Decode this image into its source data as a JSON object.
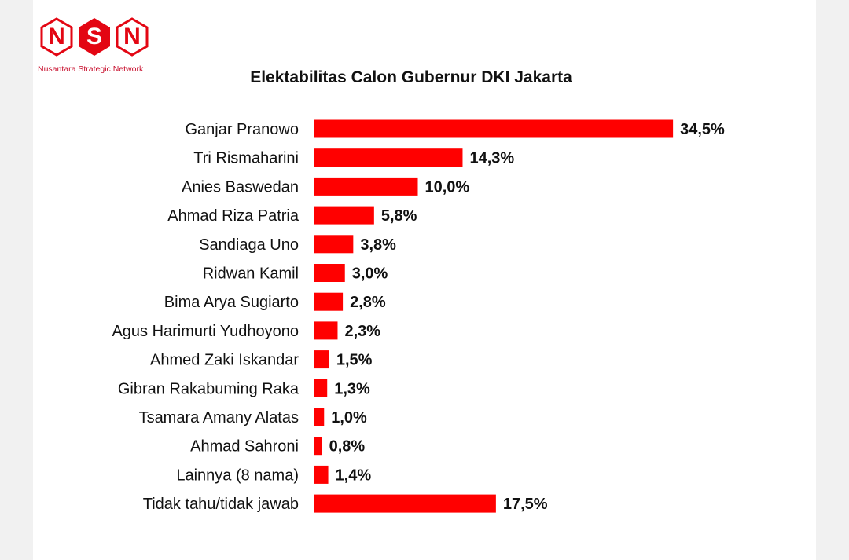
{
  "logo": {
    "letters": [
      "N",
      "S",
      "N"
    ],
    "tagline": "Nusantara Strategic Network",
    "color": "#e30613"
  },
  "chart_data": {
    "type": "bar",
    "orientation": "horizontal",
    "title": "Elektabilitas Calon Gubernur DKI Jakarta",
    "xlabel": "",
    "ylabel": "",
    "categories": [
      "Ganjar Pranowo",
      "Tri Rismaharini",
      "Anies Baswedan",
      "Ahmad Riza Patria",
      "Sandiaga Uno",
      "Ridwan Kamil",
      "Bima Arya Sugiarto",
      "Agus Harimurti Yudhoyono",
      "Ahmed Zaki Iskandar",
      "Gibran Rakabuming Raka",
      "Tsamara Amany Alatas",
      "Ahmad Sahroni",
      "Lainnya (8 nama)",
      "Tidak tahu/tidak jawab"
    ],
    "values": [
      34.5,
      14.3,
      10.0,
      5.8,
      3.8,
      3.0,
      2.8,
      2.3,
      1.5,
      1.3,
      1.0,
      0.8,
      1.4,
      17.5
    ],
    "value_labels": [
      "34,5%",
      "14,3%",
      "10,0%",
      "5,8%",
      "3,8%",
      "3,0%",
      "2,8%",
      "2,3%",
      "1,5%",
      "1,3%",
      "1,0%",
      "0,8%",
      "1,4%",
      "17,5%"
    ],
    "bar_color": "#ff0000",
    "grid": false,
    "legend": "none"
  }
}
